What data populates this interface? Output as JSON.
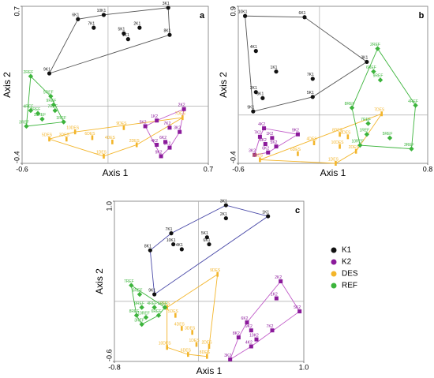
{
  "chart_data": [
    {
      "type": "scatter",
      "title": "a",
      "x_label": "Axis 1",
      "y_label": "Axis 2",
      "xlim": [
        -0.6,
        0.7
      ],
      "ylim": [
        -0.4,
        0.7
      ],
      "xticks": [
        -0.6,
        0.7
      ],
      "yticks": [
        -0.4,
        0.7
      ],
      "series": [
        {
          "name": "K1",
          "color": "#111111",
          "hull_color": "#555555",
          "marker": "circle",
          "x": [
            -0.21,
            -0.03,
            0.42,
            -0.1,
            0.11,
            0.22,
            0.14,
            0.43,
            -0.41
          ],
          "y": [
            0.61,
            0.64,
            0.69,
            0.55,
            0.51,
            0.55,
            0.47,
            0.5,
            0.23
          ],
          "labels": [
            "6K1",
            "10K1",
            "3K1",
            "7K1",
            "5K1",
            "2K1",
            "1K1",
            "8K1",
            "9K1"
          ]
        },
        {
          "name": "K2",
          "color": "#8b1a9b",
          "hull_color": "#c05ac8",
          "marker": "square",
          "x": [
            0.53,
            0.34,
            0.26,
            0.43,
            0.5,
            0.34,
            0.4,
            0.43,
            0.37
          ],
          "y": [
            -0.02,
            -0.1,
            -0.14,
            -0.15,
            -0.18,
            -0.27,
            -0.25,
            -0.29,
            -0.35
          ],
          "labels": [
            "2K2",
            "1K2",
            "5K2",
            "7K2",
            "3K2",
            "4K2",
            "6K2",
            "8K2",
            "9K2"
          ]
        },
        {
          "name": "DES",
          "color": "#f3b52a",
          "hull_color": "#f3b52a",
          "marker": "bar",
          "x": [
            -0.41,
            -0.29,
            -0.23,
            -0.11,
            0.03,
            -0.03,
            0.11,
            0.2,
            0.52
          ],
          "y": [
            -0.23,
            -0.23,
            -0.18,
            -0.22,
            -0.25,
            -0.35,
            -0.15,
            -0.27,
            -0.08
          ],
          "labels": [
            "5DES",
            "3DES",
            "10DES",
            "6DES",
            "4DES",
            "1DES",
            "9DES",
            "2DES",
            "7DES"
          ]
        },
        {
          "name": "REF",
          "color": "#3cb43c",
          "hull_color": "#3cb43c",
          "marker": "diamond",
          "x": [
            -0.54,
            -0.4,
            -0.54,
            -0.49,
            -0.37,
            -0.57,
            -0.46,
            -0.31,
            -0.38
          ],
          "y": [
            0.21,
            0.07,
            -0.03,
            -0.05,
            -0.03,
            -0.14,
            -0.09,
            -0.11,
            0.01
          ],
          "labels": [
            "2REF",
            "5REF",
            "4REF",
            "8REF",
            "7REF",
            "3REF",
            "10REF",
            "1REF",
            "9REF"
          ]
        }
      ]
    },
    {
      "type": "scatter",
      "title": "b",
      "x_label": "Axis 1",
      "y_label": "Axis 2",
      "xlim": [
        -0.6,
        0.8
      ],
      "ylim": [
        -0.4,
        0.9
      ],
      "xticks": [
        -0.6,
        0.8
      ],
      "yticks": [
        -0.4,
        0.9
      ],
      "series": [
        {
          "name": "K1",
          "color": "#111111",
          "hull_color": "#555555",
          "marker": "circle",
          "x": [
            -0.55,
            -0.11,
            -0.47,
            -0.32,
            -0.05,
            0.35,
            -0.47,
            -0.42,
            -0.49,
            -0.05
          ],
          "y": [
            0.82,
            0.81,
            0.53,
            0.36,
            0.3,
            0.44,
            0.19,
            0.14,
            0.03,
            0.15
          ],
          "labels": [
            "10K1",
            "6K1",
            "4K1",
            "1K1",
            "7K1",
            "3K1",
            "2K1",
            "8K1",
            "9K1",
            "5K1"
          ]
        },
        {
          "name": "K2",
          "color": "#8b1a9b",
          "hull_color": "#c05ac8",
          "marker": "square",
          "x": [
            -0.16,
            -0.41,
            -0.44,
            -0.32,
            -0.4,
            -0.35,
            -0.48,
            -0.38
          ],
          "y": [
            -0.16,
            -0.11,
            -0.18,
            -0.26,
            -0.24,
            -0.19,
            -0.33,
            -0.31
          ],
          "labels": [
            "9K2",
            "4K2",
            "7K2",
            "5K2",
            "8K2",
            "1K2",
            "3K2",
            "6K2"
          ]
        },
        {
          "name": "DES",
          "color": "#f3b52a",
          "hull_color": "#f3b52a",
          "marker": "bar",
          "x": [
            0.46,
            0.15,
            0.15,
            -0.04,
            0.27,
            -0.16,
            0.12,
            -0.44,
            0.21
          ],
          "y": [
            0.01,
            -0.16,
            -0.26,
            -0.23,
            -0.3,
            -0.32,
            -0.4,
            -0.37,
            -0.18
          ],
          "labels": [
            "7DES",
            "8DES",
            "10DES",
            "4DES",
            "2DES",
            "6DES",
            "1DES",
            "9DES",
            "3DES"
          ]
        },
        {
          "name": "REF",
          "color": "#3cb43c",
          "hull_color": "#3cb43c",
          "marker": "diamond",
          "x": [
            0.43,
            0.4,
            0.45,
            0.71,
            0.24,
            0.35,
            0.36,
            0.52,
            0.68,
            0.3
          ],
          "y": [
            0.55,
            0.36,
            0.29,
            0.08,
            0.06,
            -0.16,
            -0.07,
            -0.19,
            -0.28,
            -0.25
          ],
          "labels": [
            "2REF",
            "6REF",
            "9REF",
            "4REF",
            "8REF",
            "1REF",
            "7REF",
            "5REF",
            "3REF",
            "10REF"
          ]
        }
      ]
    },
    {
      "type": "scatter",
      "title": "c",
      "x_label": "Axis 1",
      "y_label": "Axis 2",
      "legend": "right",
      "xlim": [
        -0.8,
        1.0
      ],
      "ylim": [
        -0.6,
        1.0
      ],
      "xticks": [
        -0.8,
        {
          "value": 1.0,
          "label": "1.0"
        }
      ],
      "yticks": [
        -0.6,
        {
          "value": 1.0,
          "label": "1.0"
        }
      ],
      "series": [
        {
          "name": "K1",
          "color": "#111111",
          "hull_color": "#4a4aa8",
          "marker": "circle",
          "x": [
            0.26,
            0.26,
            -0.26,
            -0.24,
            -0.46,
            -0.16,
            0.08,
            0.1,
            0.66,
            -0.42
          ],
          "y": [
            0.96,
            0.83,
            0.68,
            0.57,
            0.51,
            0.52,
            0.64,
            0.57,
            0.85,
            0.07
          ],
          "labels": [
            "3K1",
            "2K1",
            "7K1",
            "10K1",
            "8K1",
            "4K1",
            "5K1",
            "6K1",
            "1K1",
            "9K1"
          ]
        },
        {
          "name": "K2",
          "color": "#8b1a9b",
          "hull_color": "#c05ac8",
          "marker": "square",
          "x": [
            0.78,
            0.74,
            0.96,
            0.46,
            0.5,
            0.7,
            0.5,
            0.55,
            0.38,
            0.3
          ],
          "y": [
            0.2,
            0.03,
            -0.1,
            -0.21,
            -0.29,
            -0.29,
            -0.45,
            -0.38,
            -0.36,
            -0.58
          ],
          "labels": [
            "2K2",
            "1K2",
            "5K2",
            "6K2",
            "9K2",
            "7K2",
            "4K2",
            "10K2",
            "8K2",
            "3K2"
          ]
        },
        {
          "name": "DES",
          "color": "#f3b52a",
          "hull_color": "#f3b52a",
          "marker": "bar",
          "x": [
            0.18,
            -0.3,
            -0.22,
            -0.16,
            -0.06,
            -0.02,
            -0.3,
            -0.1,
            0.1,
            0.08
          ],
          "y": [
            0.27,
            -0.06,
            -0.14,
            -0.27,
            -0.31,
            -0.43,
            -0.46,
            -0.53,
            -0.45,
            -0.55
          ],
          "labels": [
            "9DES",
            "7DES",
            "5DES",
            "4DES",
            "3DES",
            "1DES",
            "10DES",
            "6DES",
            "2DES",
            "8DES"
          ]
        },
        {
          "name": "REF",
          "color": "#3cb43c",
          "hull_color": "#3cb43c",
          "marker": "diamond",
          "x": [
            -0.64,
            -0.56,
            -0.42,
            -0.54,
            -0.32,
            -0.59,
            -0.5,
            -0.38,
            -0.54
          ],
          "y": [
            0.16,
            0.07,
            -0.06,
            -0.06,
            -0.06,
            -0.14,
            -0.16,
            -0.14,
            -0.23
          ],
          "labels": [
            "7REF",
            "5REF",
            "4REF",
            "9REF",
            "1REF",
            "8REF",
            "10REF",
            "6REF",
            "3REF"
          ]
        }
      ]
    }
  ]
}
